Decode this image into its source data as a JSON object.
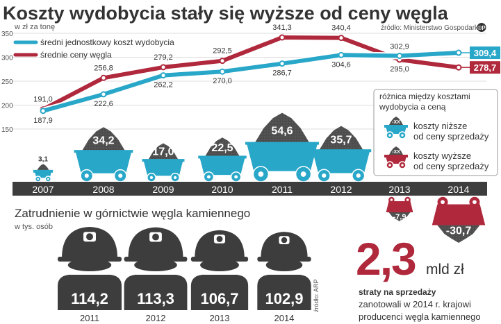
{
  "header": {
    "title": "Koszty wydobycia stały się wyższe od ceny węgla",
    "subtitle": "w zł za tonę",
    "source": "źródło: Ministerstwo Gospodarki",
    "source_mark": "©P"
  },
  "chart_data": [
    {
      "type": "line",
      "ylim": [
        150,
        350
      ],
      "yticks": [
        150,
        200,
        250,
        300,
        350
      ],
      "categories": [
        "2007",
        "2008",
        "2009",
        "2010",
        "2011",
        "2012",
        "2013",
        "2014"
      ],
      "legend_position": "top-left",
      "series": [
        {
          "name": "średni jednostkowy koszt wydobycia",
          "color": "#29a7c9",
          "values": [
            187.9,
            222.6,
            262.2,
            270.0,
            286.7,
            304.6,
            302.9,
            309.4
          ],
          "labels": [
            "187,9",
            "222,6",
            "262,2",
            "270,0",
            "286,7",
            "304,6",
            "302,9",
            "309,4"
          ]
        },
        {
          "name": "średnie ceny węgla",
          "color": "#b0283c",
          "values": [
            191.0,
            256.8,
            279.2,
            292.5,
            341.3,
            340.4,
            295.0,
            278.7
          ],
          "labels": [
            "191,0",
            "256,8",
            "279,2",
            "292,5",
            "341,3",
            "340,4",
            "295,0",
            "278,7"
          ]
        }
      ]
    },
    {
      "type": "bar",
      "title": "różnica między kosztami wydobycia a ceną",
      "categories": [
        "2007",
        "2008",
        "2009",
        "2010",
        "2011",
        "2012",
        "2013",
        "2014"
      ],
      "values": [
        3.1,
        34.2,
        17.0,
        22.5,
        54.6,
        35.7,
        -7.9,
        -30.7
      ],
      "labels": [
        "3,1",
        "34,2",
        "17,0",
        "22,5",
        "54,6",
        "35,7",
        "-7,9",
        "-30,7"
      ],
      "legend": [
        {
          "label_line1": "koszty niższe",
          "label_line2": "od ceny sprzedaży",
          "badge": "-XX",
          "color": "#29a7c9"
        },
        {
          "label_line1": "koszty wyższe",
          "label_line2": "od ceny sprzedaży",
          "badge": "-XX",
          "color": "#b0283c"
        }
      ]
    },
    {
      "type": "bar",
      "title": "Zatrudnienie w górnictwie węgla kamiennego",
      "subtitle": "w tys. osób",
      "categories": [
        "2011",
        "2012",
        "2013",
        "2014"
      ],
      "values": [
        114.2,
        113.3,
        106.7,
        102.9
      ],
      "labels": [
        "114,2",
        "113,3",
        "106,7",
        "102,9"
      ],
      "source": "źródło: ARP"
    }
  ],
  "callout": {
    "value": "2,3",
    "unit": "mld zł",
    "line1": "straty na sprzedaży",
    "line2": "zanotowali w 2014 r. krajowi",
    "line3": "producenci węgla kamiennego"
  },
  "colors": {
    "blue": "#29a7c9",
    "red": "#b0283c",
    "dark": "#333333",
    "coal": "#4d4d4d",
    "axis": "#3d3d3d"
  }
}
